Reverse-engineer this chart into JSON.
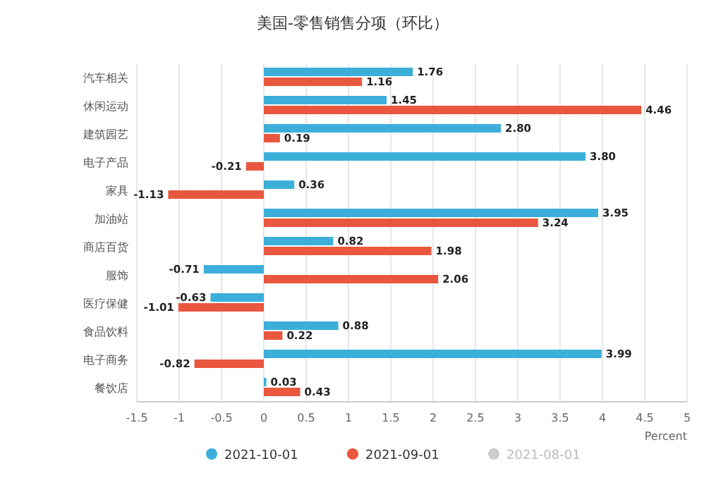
{
  "chart_data": {
    "type": "bar",
    "orientation": "horizontal",
    "title": "美国-零售销售分项（环比）",
    "xlabel": "Percent",
    "categories": [
      "汽车相关",
      "休闲运动",
      "建筑园艺",
      "电子产品",
      "家具",
      "加油站",
      "商店百货",
      "服饰",
      "医疗保健",
      "食品饮料",
      "电子商务",
      "餐饮店"
    ],
    "series": [
      {
        "name": "2021-10-01",
        "color": "#3bafda",
        "values": [
          1.76,
          1.45,
          2.8,
          3.8,
          0.36,
          3.95,
          0.82,
          -0.71,
          -0.63,
          0.88,
          3.99,
          0.03
        ],
        "value_labels": [
          "1.76",
          "1.45",
          "2.80",
          "3.80",
          "0.36",
          "3.95",
          "0.82",
          "-0.71",
          "-0.63",
          "0.88",
          "3.99",
          "0.03"
        ]
      },
      {
        "name": "2021-09-01",
        "color": "#e9573f",
        "values": [
          1.16,
          4.46,
          0.19,
          -0.21,
          -1.13,
          3.24,
          1.98,
          2.06,
          -1.01,
          0.22,
          -0.82,
          0.43
        ],
        "value_labels": [
          "1.16",
          "4.46",
          "0.19",
          "-0.21",
          "-1.13",
          "3.24",
          "1.98",
          "2.06",
          "-1.01",
          "0.22",
          "-0.82",
          "0.43"
        ]
      },
      {
        "name": "2021-08-01",
        "color": "#cccccc",
        "values": [
          null,
          null,
          null,
          null,
          null,
          null,
          null,
          null,
          null,
          null,
          null,
          null
        ]
      }
    ],
    "xlim": [
      -1.5,
      5
    ],
    "xticks": [
      -1.5,
      -1,
      -0.5,
      0,
      0.5,
      1,
      1.5,
      2,
      2.5,
      3,
      3.5,
      4,
      4.5,
      5
    ],
    "grid": "x",
    "legend": "bottom"
  }
}
